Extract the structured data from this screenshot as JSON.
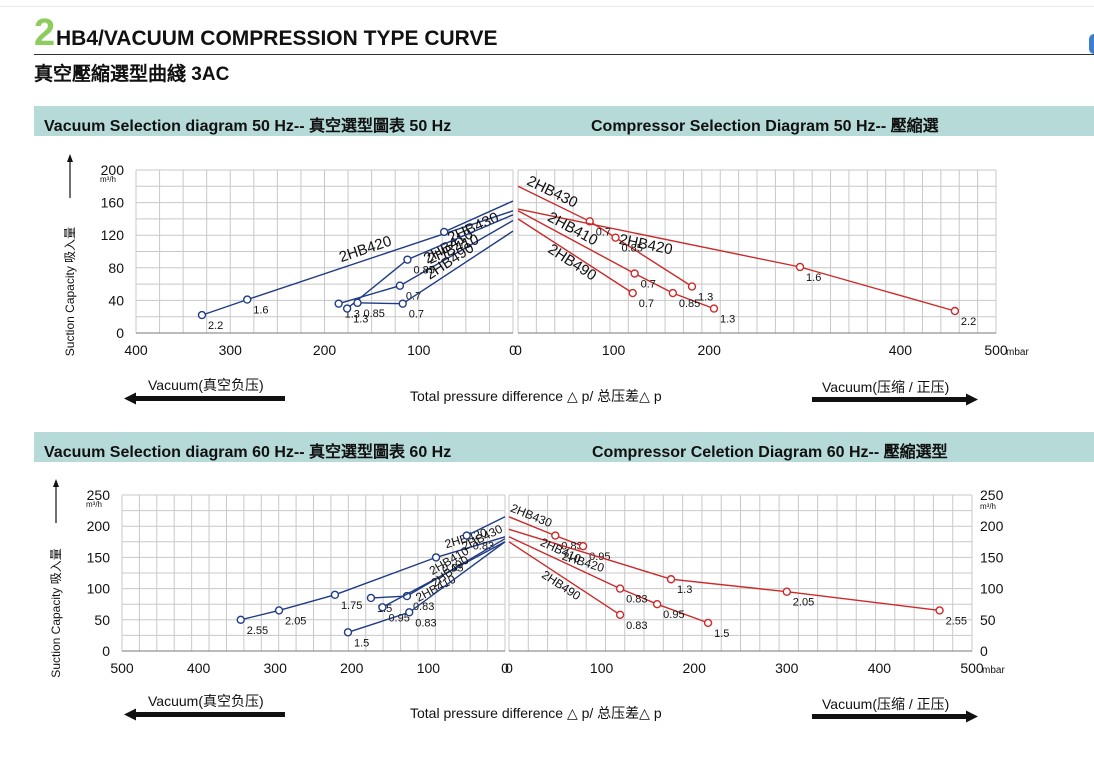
{
  "header": {
    "number": "2",
    "title": "HB4/VACUUM COMPRESSION TYPE CURVE",
    "subtitle": "真空壓縮選型曲綫 3AC"
  },
  "section1": {
    "left_title": "Vacuum Selection diagram 50 Hz-- 真空選型圖表 50 Hz",
    "right_title": "Compressor Selection Diagram 50 Hz-- 壓縮選"
  },
  "section2": {
    "left_title": "Vacuum Selection diagram 60 Hz-- 真空選型圖表 60 Hz",
    "right_title": "Compressor Celetion Diagram 60 Hz-- 壓縮選型"
  },
  "labels": {
    "ylabel": "Suction Capacity 吸入量",
    "unit_y": "m³/h",
    "unit_x": "mbar",
    "xlabel": "Total pressure difference △ p/ 总压差△ p",
    "vacuum": "Vacuum(真空负压)",
    "compress": "Vacuum(压缩 / 正压)"
  },
  "colors": {
    "vacuum": "#1f3b86",
    "compress": "#cc2a2a",
    "band": "#b5dad8",
    "accent": "#8fcc5e"
  },
  "chart_data": [
    {
      "type": "line",
      "title": "Vacuum Selection diagram 50 Hz",
      "ylim": [
        0,
        200
      ],
      "xlim": [
        400,
        0
      ],
      "yticks": [
        "0",
        "40",
        "80",
        "120",
        "160",
        "200"
      ],
      "xticks": [
        "400",
        "300",
        "200",
        "100",
        "0"
      ],
      "series": [
        {
          "name": "2HB420",
          "points": [
            {
              "x": 330,
              "y": 22,
              "label": "2.2"
            },
            {
              "x": 282,
              "y": 41,
              "label": "1.6"
            }
          ],
          "end": {
            "x": 0,
            "y": 150
          }
        },
        {
          "name": "2HB430",
          "points": [
            {
              "x": 73,
              "y": 124,
              "label": "0.7"
            }
          ],
          "end": {
            "x": 0,
            "y": 162
          }
        },
        {
          "name": "2HB410",
          "points": [
            {
              "x": 185,
              "y": 36,
              "label": "1.3"
            },
            {
              "x": 120,
              "y": 58,
              "label": "0.7"
            }
          ],
          "end": {
            "x": 0,
            "y": 138
          }
        },
        {
          "name": "2HB410",
          "points": [
            {
              "x": 176,
              "y": 30,
              "label": "1.3"
            },
            {
              "x": 112,
              "y": 90,
              "label": "0.85"
            }
          ],
          "end": {
            "x": 0,
            "y": 145
          }
        },
        {
          "name": "2HB490",
          "points": [
            {
              "x": 165,
              "y": 37,
              "label": "0.85"
            },
            {
              "x": 117,
              "y": 36,
              "label": "0.7"
            }
          ],
          "end": {
            "x": 0,
            "y": 125
          }
        }
      ]
    },
    {
      "type": "line",
      "title": "Compressor Selection Diagram 50 Hz",
      "ylim": [
        0,
        200
      ],
      "xlim": [
        0,
        500
      ],
      "xticks": [
        "0",
        "100",
        "200",
        "400",
        "500"
      ],
      "series": [
        {
          "name": "2HB430",
          "points": [
            {
              "x": 75,
              "y": 137,
              "label": "0.7"
            },
            {
              "x": 102,
              "y": 117,
              "label": "0.85"
            },
            {
              "x": 182,
              "y": 57,
              "label": "1.3"
            }
          ],
          "start": {
            "x": 0,
            "y": 180
          }
        },
        {
          "name": "2HB420",
          "points": [
            {
              "x": 295,
              "y": 81,
              "label": "1.6"
            },
            {
              "x": 457,
              "y": 27,
              "label": "2.2"
            }
          ],
          "start": {
            "x": 0,
            "y": 152
          }
        },
        {
          "name": "2HB410",
          "points": [
            {
              "x": 122,
              "y": 73,
              "label": "0.7"
            },
            {
              "x": 162,
              "y": 49,
              "label": "0.85"
            },
            {
              "x": 205,
              "y": 30,
              "label": "1.3"
            }
          ],
          "start": {
            "x": 0,
            "y": 150
          }
        },
        {
          "name": "2HB490",
          "points": [
            {
              "x": 120,
              "y": 49,
              "label": "0.7"
            }
          ],
          "start": {
            "x": 0,
            "y": 140
          }
        }
      ]
    },
    {
      "type": "line",
      "title": "Vacuum Selection diagram 60 Hz",
      "ylim": [
        0,
        250
      ],
      "xlim": [
        500,
        0
      ],
      "yticks": [
        "0",
        "50",
        "100",
        "150",
        "200",
        "250"
      ],
      "xticks": [
        "500",
        "400",
        "300",
        "200",
        "100",
        "0"
      ],
      "series": [
        {
          "name": "2HB420",
          "points": [
            {
              "x": 345,
              "y": 50,
              "label": "2.55"
            },
            {
              "x": 295,
              "y": 65,
              "label": "2.05"
            },
            {
              "x": 222,
              "y": 90,
              "label": "1.75"
            },
            {
              "x": 90,
              "y": 150,
              "label": "0.95"
            }
          ],
          "end": {
            "x": 0,
            "y": 183
          }
        },
        {
          "name": "2HB430",
          "points": [
            {
              "x": 50,
              "y": 185,
              "label": "0.83"
            }
          ],
          "end": {
            "x": 0,
            "y": 215
          }
        },
        {
          "name": "2HB410",
          "points": [
            {
              "x": 175,
              "y": 85,
              "label": "1.5"
            },
            {
              "x": 128,
              "y": 88,
              "label": "0.83"
            }
          ],
          "end": {
            "x": 0,
            "y": 180
          }
        },
        {
          "name": "2HB410",
          "points": [
            {
              "x": 160,
              "y": 70,
              "label": "0.95"
            }
          ],
          "end": {
            "x": 0,
            "y": 175
          }
        },
        {
          "name": "2HB490",
          "points": [
            {
              "x": 205,
              "y": 30,
              "label": "1.5"
            },
            {
              "x": 125,
              "y": 62,
              "label": "0.83"
            }
          ],
          "end": {
            "x": 0,
            "y": 175
          }
        }
      ]
    },
    {
      "type": "line",
      "title": "Compressor Celetion Diagram 60 Hz",
      "ylim": [
        0,
        250
      ],
      "xlim": [
        0,
        500
      ],
      "xticks": [
        "0",
        "100",
        "200",
        "300",
        "400",
        "500"
      ],
      "yticks_right": [
        "0",
        "50",
        "100",
        "150",
        "200",
        "250"
      ],
      "series": [
        {
          "name": "2HB430",
          "points": [
            {
              "x": 50,
              "y": 185,
              "label": "0.83"
            },
            {
              "x": 80,
              "y": 168,
              "label": "0.95"
            }
          ],
          "start": {
            "x": 0,
            "y": 215
          }
        },
        {
          "name": "2HB420",
          "points": [
            {
              "x": 175,
              "y": 115,
              "label": "1.3"
            },
            {
              "x": 300,
              "y": 95,
              "label": "2.05"
            },
            {
              "x": 465,
              "y": 65,
              "label": "2.55"
            }
          ],
          "start": {
            "x": 0,
            "y": 195
          }
        },
        {
          "name": "2HB410",
          "points": [
            {
              "x": 120,
              "y": 100,
              "label": "0.83"
            },
            {
              "x": 160,
              "y": 75,
              "label": "0.95"
            },
            {
              "x": 215,
              "y": 45,
              "label": "1.5"
            }
          ],
          "start": {
            "x": 0,
            "y": 183
          }
        },
        {
          "name": "2HB490",
          "points": [
            {
              "x": 120,
              "y": 58,
              "label": "0.83"
            }
          ],
          "start": {
            "x": 0,
            "y": 175
          }
        }
      ]
    }
  ]
}
